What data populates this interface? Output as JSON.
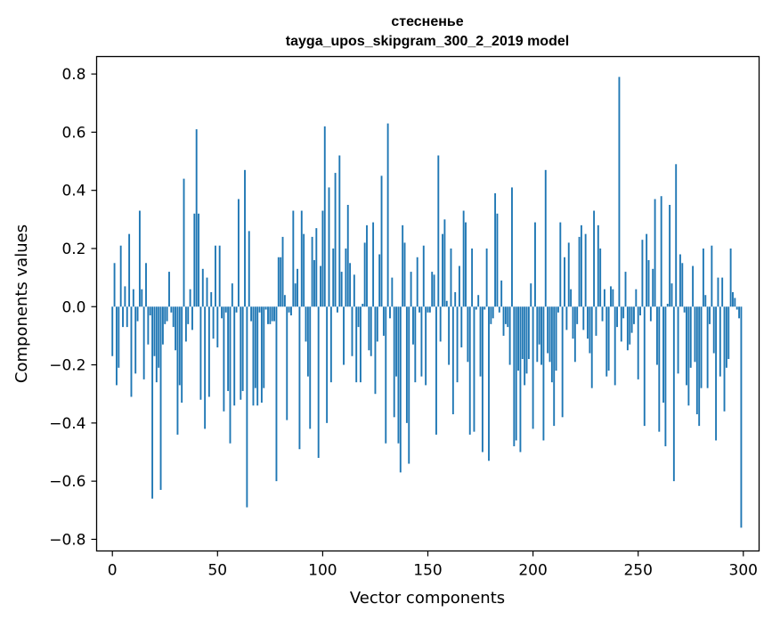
{
  "chart_data": {
    "type": "bar",
    "title": "стесненье",
    "subtitle": "tayga_upos_skipgram_300_2_2019 model",
    "xlabel": "Vector components",
    "ylabel": "Components values",
    "xlim": [
      -7.5,
      307.5
    ],
    "ylim": [
      -0.84,
      0.86
    ],
    "xticks": [
      0,
      50,
      100,
      150,
      200,
      250,
      300
    ],
    "xtick_labels": [
      "0",
      "50",
      "100",
      "150",
      "200",
      "250",
      "300"
    ],
    "yticks": [
      0.8,
      0.6,
      0.4,
      0.2,
      0.0,
      -0.2,
      -0.4,
      -0.6,
      -0.8
    ],
    "ytick_labels": [
      "0.8",
      "0.6",
      "0.4",
      "0.2",
      "0.0",
      "−0.2",
      "−0.4",
      "−0.6",
      "−0.8"
    ],
    "bar_color": "#1f77b4",
    "grid": false,
    "x": [
      0,
      1,
      2,
      3,
      4,
      5,
      6,
      7,
      8,
      9,
      10,
      11,
      12,
      13,
      14,
      15,
      16,
      17,
      18,
      19,
      20,
      21,
      22,
      23,
      24,
      25,
      26,
      27,
      28,
      29,
      30,
      31,
      32,
      33,
      34,
      35,
      36,
      37,
      38,
      39,
      40,
      41,
      42,
      43,
      44,
      45,
      46,
      47,
      48,
      49,
      50,
      51,
      52,
      53,
      54,
      55,
      56,
      57,
      58,
      59,
      60,
      61,
      62,
      63,
      64,
      65,
      66,
      67,
      68,
      69,
      70,
      71,
      72,
      73,
      74,
      75,
      76,
      77,
      78,
      79,
      80,
      81,
      82,
      83,
      84,
      85,
      86,
      87,
      88,
      89,
      90,
      91,
      92,
      93,
      94,
      95,
      96,
      97,
      98,
      99,
      100,
      101,
      102,
      103,
      104,
      105,
      106,
      107,
      108,
      109,
      110,
      111,
      112,
      113,
      114,
      115,
      116,
      117,
      118,
      119,
      120,
      121,
      122,
      123,
      124,
      125,
      126,
      127,
      128,
      129,
      130,
      131,
      132,
      133,
      134,
      135,
      136,
      137,
      138,
      139,
      140,
      141,
      142,
      143,
      144,
      145,
      146,
      147,
      148,
      149,
      150,
      151,
      152,
      153,
      154,
      155,
      156,
      157,
      158,
      159,
      160,
      161,
      162,
      163,
      164,
      165,
      166,
      167,
      168,
      169,
      170,
      171,
      172,
      173,
      174,
      175,
      176,
      177,
      178,
      179,
      180,
      181,
      182,
      183,
      184,
      185,
      186,
      187,
      188,
      189,
      190,
      191,
      192,
      193,
      194,
      195,
      196,
      197,
      198,
      199,
      200,
      201,
      202,
      203,
      204,
      205,
      206,
      207,
      208,
      209,
      210,
      211,
      212,
      213,
      214,
      215,
      216,
      217,
      218,
      219,
      220,
      221,
      222,
      223,
      224,
      225,
      226,
      227,
      228,
      229,
      230,
      231,
      232,
      233,
      234,
      235,
      236,
      237,
      238,
      239,
      240,
      241,
      242,
      243,
      244,
      245,
      246,
      247,
      248,
      249,
      250,
      251,
      252,
      253,
      254,
      255,
      256,
      257,
      258,
      259,
      260,
      261,
      262,
      263,
      264,
      265,
      266,
      267,
      268,
      269,
      270,
      271,
      272,
      273,
      274,
      275,
      276,
      277,
      278,
      279,
      280,
      281,
      282,
      283,
      284,
      285,
      286,
      287,
      288,
      289,
      290,
      291,
      292,
      293,
      294,
      295,
      296,
      297,
      298,
      299
    ],
    "values": [
      -0.17,
      0.15,
      -0.27,
      -0.21,
      0.21,
      -0.07,
      0.07,
      -0.07,
      0.25,
      -0.31,
      0.06,
      -0.23,
      -0.05,
      0.33,
      0.06,
      -0.25,
      0.15,
      -0.13,
      -0.03,
      -0.66,
      -0.17,
      -0.26,
      -0.21,
      -0.63,
      -0.13,
      -0.06,
      -0.05,
      0.12,
      -0.02,
      -0.07,
      -0.15,
      -0.44,
      -0.27,
      -0.33,
      0.44,
      -0.12,
      -0.06,
      0.06,
      -0.08,
      0.32,
      0.61,
      0.32,
      -0.32,
      0.13,
      -0.42,
      0.1,
      -0.31,
      0.05,
      -0.11,
      0.21,
      -0.14,
      0.21,
      -0.04,
      -0.36,
      -0.02,
      -0.29,
      -0.47,
      0.08,
      -0.34,
      -0.02,
      0.37,
      -0.32,
      -0.29,
      0.47,
      -0.69,
      0.26,
      -0.05,
      -0.34,
      -0.28,
      -0.34,
      -0.02,
      -0.33,
      -0.28,
      -0.01,
      -0.06,
      -0.06,
      -0.05,
      -0.05,
      -0.6,
      0.17,
      0.17,
      0.24,
      0.04,
      -0.39,
      -0.02,
      -0.03,
      0.33,
      0.08,
      0.13,
      -0.49,
      0.33,
      0.25,
      -0.12,
      -0.24,
      -0.42,
      0.24,
      0.16,
      0.27,
      -0.52,
      0.14,
      0.33,
      0.62,
      -0.4,
      0.41,
      -0.26,
      0.2,
      0.46,
      -0.02,
      0.52,
      0.12,
      -0.2,
      0.2,
      0.35,
      0.15,
      -0.17,
      0.11,
      -0.26,
      -0.07,
      -0.26,
      0.01,
      0.22,
      0.28,
      -0.15,
      -0.17,
      0.29,
      -0.3,
      -0.12,
      0.18,
      0.45,
      -0.1,
      -0.47,
      0.63,
      -0.04,
      0.1,
      -0.38,
      -0.24,
      -0.47,
      -0.57,
      0.28,
      0.22,
      -0.4,
      -0.54,
      0.12,
      -0.13,
      -0.26,
      0.17,
      -0.02,
      -0.24,
      0.21,
      -0.27,
      -0.02,
      -0.02,
      0.12,
      0.11,
      -0.44,
      0.52,
      -0.12,
      0.25,
      0.3,
      0.02,
      -0.2,
      0.2,
      -0.37,
      0.05,
      -0.26,
      0.14,
      -0.14,
      0.33,
      0.29,
      -0.19,
      -0.44,
      0.2,
      -0.43,
      -0.01,
      0.04,
      -0.24,
      -0.5,
      -0.01,
      0.2,
      -0.53,
      -0.06,
      -0.04,
      0.39,
      0.32,
      -0.02,
      0.09,
      -0.1,
      -0.06,
      -0.07,
      -0.2,
      0.41,
      -0.48,
      -0.46,
      -0.22,
      -0.5,
      -0.18,
      -0.27,
      -0.23,
      -0.18,
      0.08,
      -0.42,
      0.29,
      -0.19,
      -0.13,
      -0.2,
      -0.46,
      0.47,
      -0.16,
      -0.19,
      -0.26,
      -0.41,
      -0.22,
      -0.02,
      0.29,
      -0.38,
      0.17,
      -0.08,
      0.22,
      0.06,
      -0.11,
      -0.19,
      -0.06,
      0.24,
      0.28,
      -0.08,
      0.25,
      -0.11,
      -0.16,
      -0.28,
      0.33,
      -0.1,
      0.28,
      0.2,
      -0.05,
      0.06,
      -0.24,
      -0.22,
      0.07,
      0.06,
      -0.27,
      -0.07,
      0.79,
      -0.12,
      -0.04,
      0.12,
      -0.15,
      -0.13,
      -0.09,
      -0.06,
      0.06,
      -0.25,
      -0.03,
      0.23,
      -0.41,
      0.25,
      0.16,
      -0.05,
      0.13,
      0.37,
      -0.2,
      -0.43,
      0.38,
      -0.33,
      -0.48,
      0.01,
      0.35,
      0.08,
      -0.6,
      0.49,
      -0.23,
      0.18,
      0.15,
      -0.02,
      -0.27,
      -0.34,
      -0.21,
      0.14,
      -0.19,
      -0.37,
      -0.41,
      -0.28,
      0.2,
      0.04,
      -0.28,
      -0.06,
      0.21,
      -0.16,
      -0.46,
      0.1,
      -0.24,
      0.1,
      -0.36,
      -0.21,
      -0.18,
      0.2,
      0.05,
      0.03,
      -0.01,
      -0.04,
      -0.76
    ]
  }
}
